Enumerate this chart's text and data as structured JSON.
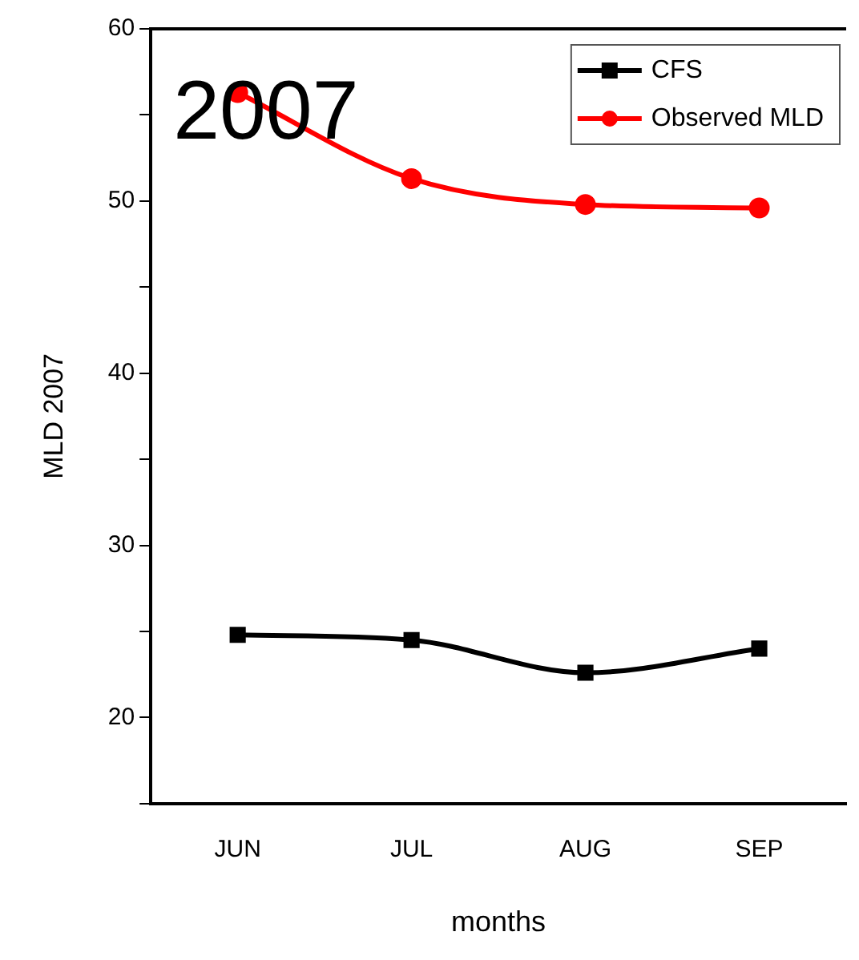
{
  "chart_data": {
    "type": "line",
    "xlabel": "months",
    "ylabel": "MLD 2007",
    "annotations": [
      "2007"
    ],
    "categories": [
      "JUN",
      "JUL",
      "AUG",
      "SEP"
    ],
    "series": [
      {
        "name": "CFS",
        "color": "#000000",
        "marker": "square",
        "values": [
          24.8,
          24.5,
          22.6,
          24.0
        ]
      },
      {
        "name": "Observed MLD",
        "color": "#ff0000",
        "marker": "circle",
        "values": [
          56.3,
          51.3,
          49.8,
          49.6
        ]
      }
    ],
    "ylim": [
      15,
      60
    ],
    "yticks": [
      {
        "value": 15,
        "label": null
      },
      20,
      {
        "value": 25,
        "label": null
      },
      30,
      {
        "value": 35,
        "label": null
      },
      40,
      {
        "value": 45,
        "label": null
      },
      50,
      {
        "value": 55,
        "label": null
      },
      60
    ],
    "grid": false,
    "legend": "top right",
    "line_style": "solid"
  }
}
